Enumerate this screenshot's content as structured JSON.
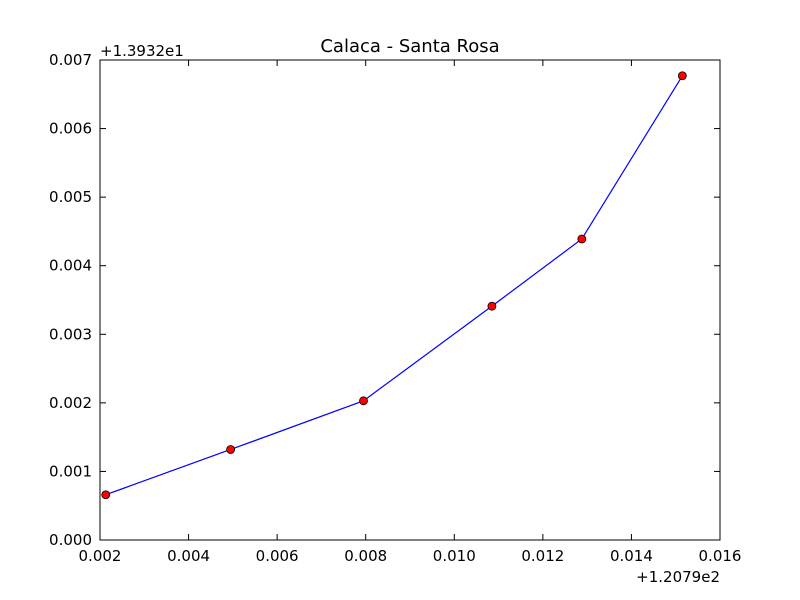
{
  "chart_data": {
    "type": "line",
    "title": "Calaca - Santa Rosa",
    "xlabel": "",
    "ylabel": "",
    "x_offset_label": "+1.2079e2",
    "y_offset_label": "+1.3932e1",
    "xlim": [
      0.002,
      0.016
    ],
    "ylim": [
      0.0,
      0.007
    ],
    "x_ticks": [
      0.002,
      0.004,
      0.006,
      0.008,
      0.01,
      0.012,
      0.014,
      0.016
    ],
    "x_tick_labels": [
      "0.002",
      "0.004",
      "0.006",
      "0.008",
      "0.010",
      "0.012",
      "0.014",
      "0.016"
    ],
    "y_ticks": [
      0.0,
      0.001,
      0.002,
      0.003,
      0.004,
      0.005,
      0.006,
      0.007
    ],
    "y_tick_labels": [
      "0.000",
      "0.001",
      "0.002",
      "0.003",
      "0.004",
      "0.005",
      "0.006",
      "0.007"
    ],
    "grid": false,
    "series": [
      {
        "line_color": "#0000ff",
        "marker_fill": "#ff0000",
        "marker_edge": "#000000",
        "x": [
          0.00213,
          0.00495,
          0.00795,
          0.01085,
          0.01288,
          0.01515
        ],
        "y": [
          0.00066,
          0.00132,
          0.00203,
          0.00341,
          0.00439,
          0.00677
        ]
      }
    ]
  }
}
